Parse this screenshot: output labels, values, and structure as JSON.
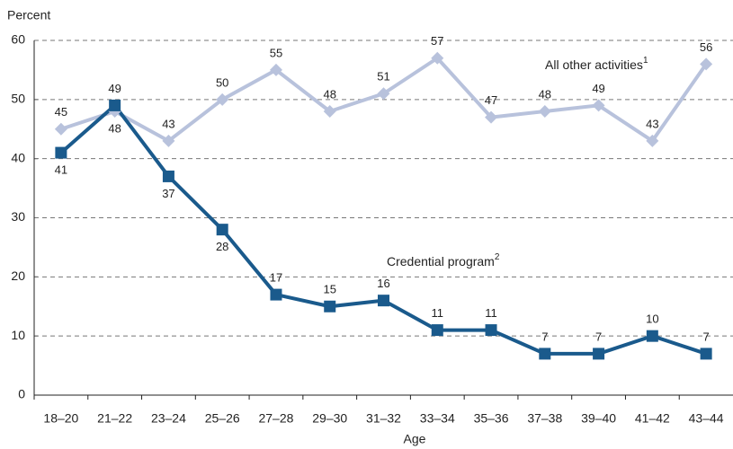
{
  "chart_data": {
    "type": "line",
    "y_label": "Percent",
    "x_label": "Age",
    "categories": [
      "18–20",
      "21–22",
      "23–24",
      "25–26",
      "27–28",
      "29–30",
      "31–32",
      "33–34",
      "35–36",
      "37–38",
      "39–40",
      "41–42",
      "43–44"
    ],
    "series": [
      {
        "name": "All other activities",
        "footnote": "1",
        "color": "#b8c2dc",
        "marker": "diamond",
        "values": [
          45,
          48,
          43,
          50,
          55,
          48,
          51,
          57,
          47,
          48,
          49,
          43,
          56
        ]
      },
      {
        "name": "Credential program",
        "footnote": "2",
        "color": "#1a5a8c",
        "marker": "square",
        "values": [
          41,
          49,
          37,
          28,
          17,
          15,
          16,
          11,
          11,
          7,
          7,
          10,
          7
        ]
      }
    ],
    "ylim": [
      0,
      60
    ],
    "yticks": [
      0,
      10,
      20,
      30,
      40,
      50,
      60
    ],
    "grid": true
  }
}
